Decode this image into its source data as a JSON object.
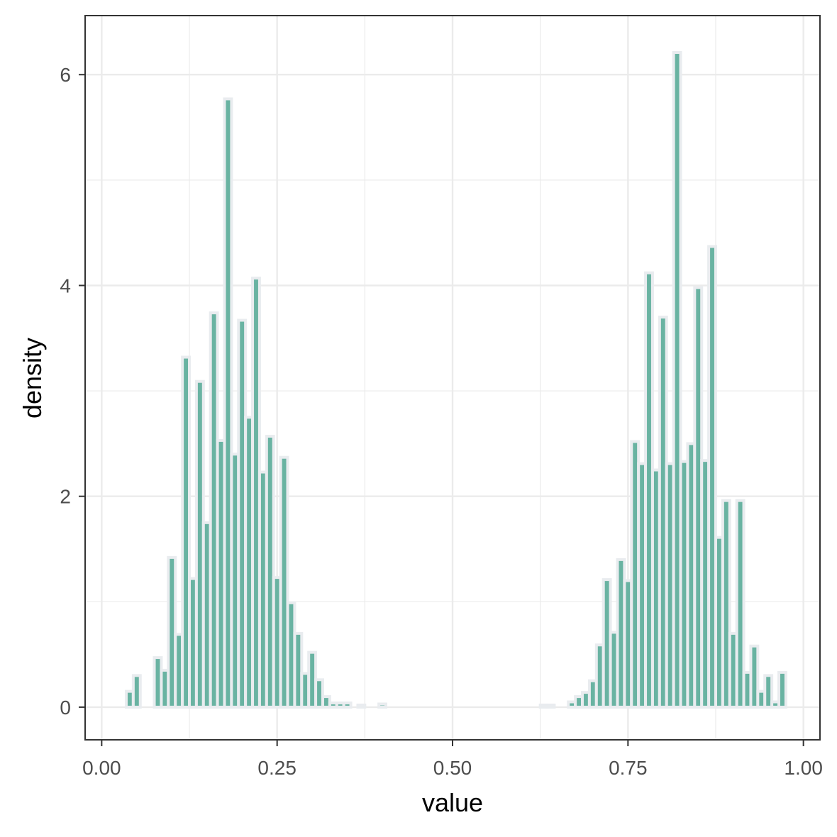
{
  "chart_data": {
    "type": "bar",
    "title": "",
    "xlabel": "value",
    "ylabel": "density",
    "xlim": [
      -0.0236,
      1.0236
    ],
    "ylim": [
      -0.31,
      6.56
    ],
    "x_ticks": [
      0,
      0.25,
      0.5,
      0.75,
      1
    ],
    "x_tick_labels": [
      "0.00",
      "0.25",
      "0.50",
      "0.75",
      "1.00"
    ],
    "y_ticks": [
      0,
      2,
      4,
      6
    ],
    "y_tick_labels": [
      "0",
      "2",
      "4",
      "6"
    ],
    "grid": true,
    "bin_width": 0.01,
    "colors": {
      "fill": "#69b3a2",
      "outline": "#e9ecef",
      "panel_border": "#333333",
      "grid": "#ebebeb"
    },
    "bins": [
      {
        "x": 0.04,
        "y": 0.15
      },
      {
        "x": 0.05,
        "y": 0.3
      },
      {
        "x": 0.08,
        "y": 0.47
      },
      {
        "x": 0.09,
        "y": 0.35
      },
      {
        "x": 0.1,
        "y": 1.42
      },
      {
        "x": 0.11,
        "y": 0.69
      },
      {
        "x": 0.12,
        "y": 3.32
      },
      {
        "x": 0.13,
        "y": 1.22
      },
      {
        "x": 0.14,
        "y": 3.09
      },
      {
        "x": 0.15,
        "y": 1.75
      },
      {
        "x": 0.16,
        "y": 3.74
      },
      {
        "x": 0.17,
        "y": 2.53
      },
      {
        "x": 0.18,
        "y": 5.77
      },
      {
        "x": 0.19,
        "y": 2.4
      },
      {
        "x": 0.2,
        "y": 3.67
      },
      {
        "x": 0.21,
        "y": 2.75
      },
      {
        "x": 0.22,
        "y": 4.07
      },
      {
        "x": 0.23,
        "y": 2.23
      },
      {
        "x": 0.24,
        "y": 2.57
      },
      {
        "x": 0.25,
        "y": 1.23
      },
      {
        "x": 0.26,
        "y": 2.37
      },
      {
        "x": 0.27,
        "y": 0.99
      },
      {
        "x": 0.28,
        "y": 0.7
      },
      {
        "x": 0.29,
        "y": 0.32
      },
      {
        "x": 0.3,
        "y": 0.52
      },
      {
        "x": 0.31,
        "y": 0.26
      },
      {
        "x": 0.32,
        "y": 0.1
      },
      {
        "x": 0.33,
        "y": 0.04
      },
      {
        "x": 0.34,
        "y": 0.04
      },
      {
        "x": 0.35,
        "y": 0.04
      },
      {
        "x": 0.37,
        "y": 0.02
      },
      {
        "x": 0.4,
        "y": 0.03
      },
      {
        "x": 0.63,
        "y": 0.02
      },
      {
        "x": 0.64,
        "y": 0.02
      },
      {
        "x": 0.67,
        "y": 0.05
      },
      {
        "x": 0.68,
        "y": 0.1
      },
      {
        "x": 0.69,
        "y": 0.14
      },
      {
        "x": 0.7,
        "y": 0.25
      },
      {
        "x": 0.71,
        "y": 0.59
      },
      {
        "x": 0.72,
        "y": 1.21
      },
      {
        "x": 0.73,
        "y": 0.71
      },
      {
        "x": 0.74,
        "y": 1.4
      },
      {
        "x": 0.75,
        "y": 1.2
      },
      {
        "x": 0.76,
        "y": 2.52
      },
      {
        "x": 0.77,
        "y": 2.31
      },
      {
        "x": 0.78,
        "y": 4.12
      },
      {
        "x": 0.79,
        "y": 2.25
      },
      {
        "x": 0.8,
        "y": 3.7
      },
      {
        "x": 0.81,
        "y": 2.31
      },
      {
        "x": 0.82,
        "y": 6.21
      },
      {
        "x": 0.83,
        "y": 2.33
      },
      {
        "x": 0.84,
        "y": 2.5
      },
      {
        "x": 0.85,
        "y": 3.98
      },
      {
        "x": 0.86,
        "y": 2.34
      },
      {
        "x": 0.87,
        "y": 4.37
      },
      {
        "x": 0.88,
        "y": 1.61
      },
      {
        "x": 0.89,
        "y": 1.96
      },
      {
        "x": 0.9,
        "y": 0.7
      },
      {
        "x": 0.91,
        "y": 1.96
      },
      {
        "x": 0.92,
        "y": 0.33
      },
      {
        "x": 0.93,
        "y": 0.58
      },
      {
        "x": 0.94,
        "y": 0.15
      },
      {
        "x": 0.95,
        "y": 0.3
      },
      {
        "x": 0.96,
        "y": 0.05
      },
      {
        "x": 0.97,
        "y": 0.33
      }
    ]
  }
}
